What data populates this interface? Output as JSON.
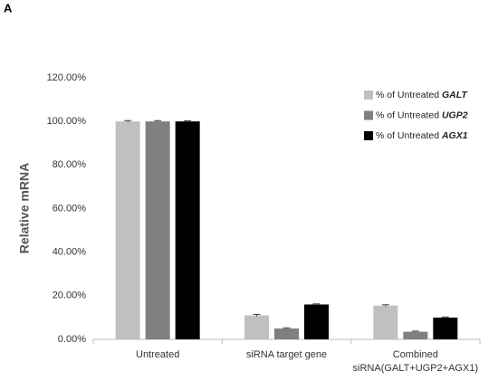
{
  "panel_label": "A",
  "chart_data": {
    "type": "bar",
    "y_label": "Relative mRNA",
    "categories": [
      "Untreated",
      "siRNA target gene",
      "Combined siRNA(GALT+UGP2+AGX1)"
    ],
    "series": [
      {
        "name": "%  of Untreated GALT",
        "color": "#c0c0c0",
        "values": [
          100,
          11,
          15.5
        ],
        "errors": [
          0.4,
          0.4,
          0.4
        ]
      },
      {
        "name": "%  of Untreated UGP2",
        "color": "#808080",
        "values": [
          100,
          5,
          3.5
        ],
        "errors": [
          0.4,
          0.3,
          0.3
        ]
      },
      {
        "name": "%  of Untreated AGX1",
        "color": "#000000",
        "values": [
          100,
          16,
          10
        ],
        "errors": [
          0.3,
          0.3,
          0.3
        ]
      }
    ],
    "ylim": [
      0,
      120
    ],
    "yticks": [
      {
        "value": 0,
        "label": "0.00%"
      },
      {
        "value": 20,
        "label": "20.00%"
      },
      {
        "value": 40,
        "label": "40.00%"
      },
      {
        "value": 60,
        "label": "60.00%"
      },
      {
        "value": 80,
        "label": "80.00%"
      },
      {
        "value": 100,
        "label": "100.00%"
      },
      {
        "value": 120,
        "label": "120.00%"
      }
    ],
    "legend": "top-right",
    "grid": false
  }
}
